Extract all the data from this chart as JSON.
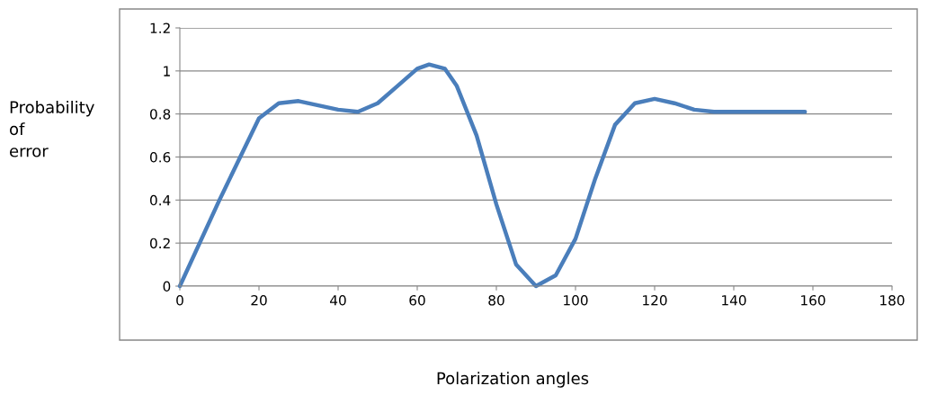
{
  "chart_data": {
    "type": "line",
    "xlabel": "Polarization angles",
    "ylabel": "Probability\nof\nerror",
    "x": [
      0,
      10,
      20,
      25,
      30,
      35,
      40,
      45,
      50,
      55,
      60,
      63,
      67,
      70,
      75,
      80,
      85,
      90,
      95,
      100,
      105,
      110,
      115,
      120,
      125,
      130,
      135,
      145,
      158
    ],
    "series": [
      {
        "color": "#4a7ebb",
        "values": [
          0,
          0.4,
          0.78,
          0.85,
          0.86,
          0.84,
          0.82,
          0.81,
          0.85,
          0.93,
          1.01,
          1.03,
          1.01,
          0.93,
          0.7,
          0.38,
          0.1,
          0,
          0.05,
          0.22,
          0.5,
          0.75,
          0.85,
          0.87,
          0.85,
          0.82,
          0.81,
          0.81,
          0.81
        ]
      }
    ],
    "xlim": [
      0,
      180
    ],
    "xticks": [
      0,
      20,
      40,
      60,
      80,
      100,
      120,
      140,
      160,
      180
    ],
    "ylim": [
      0,
      1.2
    ],
    "yticks": [
      0,
      0.2,
      0.4,
      0.6,
      0.8,
      1,
      1.2
    ],
    "grid": "y",
    "marker": "none",
    "line_style": "solid"
  }
}
